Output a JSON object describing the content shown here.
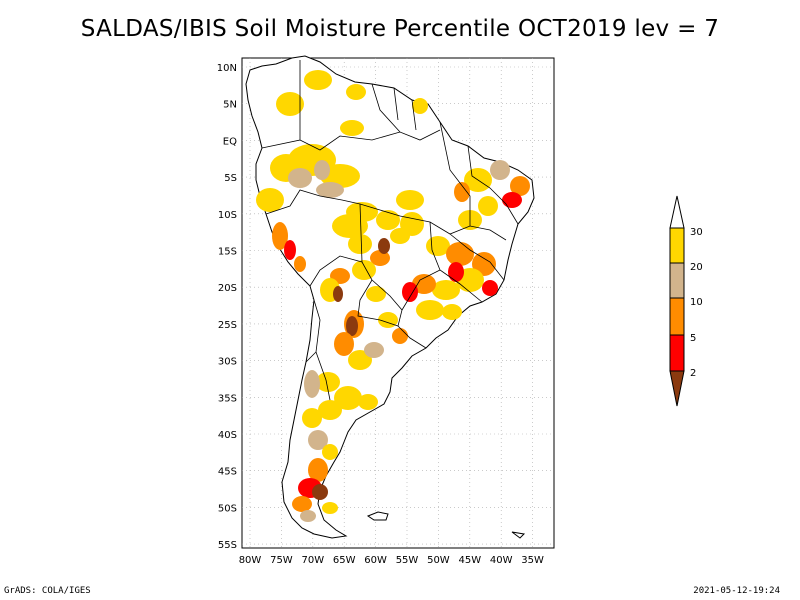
{
  "title": "SALDAS/IBIS Soil Moisture Percentile OCT2019 lev = 7",
  "map": {
    "lat_labels": [
      "10N",
      "5N",
      "EQ",
      "5S",
      "10S",
      "15S",
      "20S",
      "25S",
      "30S",
      "35S",
      "40S",
      "45S",
      "50S",
      "55S"
    ],
    "lon_labels": [
      "80W",
      "75W",
      "70W",
      "65W",
      "60W",
      "55W",
      "50W",
      "45W",
      "40W",
      "35W"
    ],
    "colors": {
      "p2": "#8b3a0f",
      "p5": "#ff0000",
      "p10": "#ff8c00",
      "p20": "#d2b48c",
      "p30": "#ffd700",
      "coast": "#000000",
      "grid": "#aaaaaa"
    }
  },
  "colorbar": {
    "labels": [
      "30",
      "20",
      "10",
      "5",
      "2"
    ],
    "colors": [
      "#ffffff",
      "#ffd700",
      "#d2b48c",
      "#ff8c00",
      "#ff0000",
      "#8b3a0f"
    ]
  },
  "footer": {
    "left": "GrADS: COLA/IGES",
    "right": "2021-05-12-19:24"
  }
}
